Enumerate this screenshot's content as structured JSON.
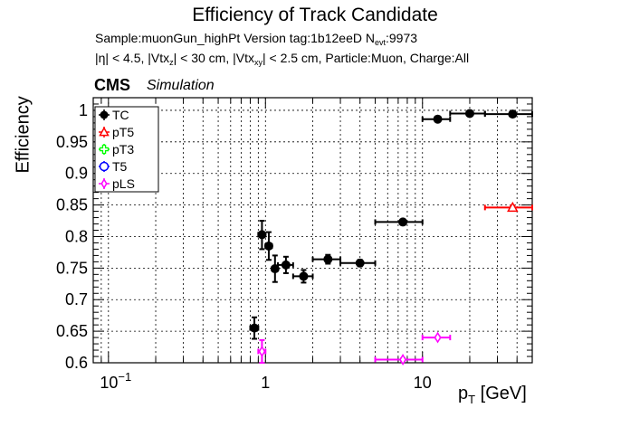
{
  "header": {
    "title": "Efficiency of Track Candidate",
    "info_line1_a": "Sample:muonGun_highPt   Version tag:1b12eeD  N",
    "info_line1_sub": "evt",
    "info_line1_b": ":9973",
    "info_line2_a": "|η| < 4.5, |Vtx",
    "info_line2_sub1": "z",
    "info_line2_b": "| < 30 cm, |Vtx",
    "info_line2_sub2": "xy",
    "info_line2_c": "| < 2.5 cm, Particle:Muon, Charge:All",
    "cms": "CMS",
    "simulation": "Simulation"
  },
  "chart_data": {
    "type": "scatter",
    "title": "Efficiency of Track Candidate",
    "xlabel_main": "p",
    "xlabel_sub": "T",
    "xlabel_unit": " [GeV]",
    "ylabel": "Efficiency",
    "x_scale": "log",
    "xlim": [
      0.08,
      50
    ],
    "ylim": [
      0.6,
      1.02
    ],
    "grid": true,
    "legend_position": "top-left",
    "x_tick_labels": [
      {
        "value": 0.1,
        "base": "10",
        "exp": "−1"
      },
      {
        "value": 1,
        "base": "1",
        "exp": ""
      },
      {
        "value": 10,
        "base": "10",
        "exp": ""
      }
    ],
    "y_ticks": [
      0.6,
      0.65,
      0.7,
      0.75,
      0.8,
      0.85,
      0.9,
      0.95,
      1.0
    ],
    "y_tick_labels": [
      "0.6",
      "0.65",
      "0.7",
      "0.75",
      "0.8",
      "0.85",
      "0.9",
      "0.95",
      "1"
    ],
    "series": [
      {
        "name": "TC",
        "color": "#000000",
        "marker": "filled-circle",
        "points": [
          {
            "x": 0.85,
            "y": 0.655,
            "xlo": 0.8,
            "xhi": 0.9,
            "ylo": 0.638,
            "yhi": 0.672
          },
          {
            "x": 0.95,
            "y": 0.803,
            "xlo": 0.9,
            "xhi": 1.0,
            "ylo": 0.78,
            "yhi": 0.825
          },
          {
            "x": 1.05,
            "y": 0.785,
            "xlo": 1.0,
            "xhi": 1.1,
            "ylo": 0.763,
            "yhi": 0.807
          },
          {
            "x": 1.15,
            "y": 0.749,
            "xlo": 1.1,
            "xhi": 1.2,
            "ylo": 0.728,
            "yhi": 0.77
          },
          {
            "x": 1.35,
            "y": 0.755,
            "xlo": 1.2,
            "xhi": 1.5,
            "ylo": 0.742,
            "yhi": 0.768
          },
          {
            "x": 1.75,
            "y": 0.737,
            "xlo": 1.5,
            "xhi": 2.0,
            "ylo": 0.727,
            "yhi": 0.747
          },
          {
            "x": 2.5,
            "y": 0.764,
            "xlo": 2.0,
            "xhi": 3.0,
            "ylo": 0.757,
            "yhi": 0.771
          },
          {
            "x": 4.0,
            "y": 0.758,
            "xlo": 3.0,
            "xhi": 5.0,
            "ylo": 0.753,
            "yhi": 0.763
          },
          {
            "x": 7.5,
            "y": 0.823,
            "xlo": 5.0,
            "xhi": 10.0,
            "ylo": 0.82,
            "yhi": 0.826
          },
          {
            "x": 12.5,
            "y": 0.986,
            "xlo": 10.0,
            "xhi": 15.0,
            "ylo": 0.984,
            "yhi": 0.988
          },
          {
            "x": 20.0,
            "y": 0.995,
            "xlo": 15.0,
            "xhi": 25.0,
            "ylo": 0.994,
            "yhi": 0.996
          },
          {
            "x": 37.5,
            "y": 0.994,
            "xlo": 25.0,
            "xhi": 50.0,
            "ylo": 0.993,
            "yhi": 0.995
          }
        ]
      },
      {
        "name": "pT5",
        "color": "#ff0000",
        "marker": "open-triangle",
        "points": [
          {
            "x": 37.5,
            "y": 0.846,
            "xlo": 25.0,
            "xhi": 50.0,
            "ylo": 0.843,
            "yhi": 0.849
          }
        ]
      },
      {
        "name": "pT3",
        "color": "#00ff00",
        "marker": "open-cross",
        "points": []
      },
      {
        "name": "T5",
        "color": "#0000ff",
        "marker": "open-circle",
        "points": []
      },
      {
        "name": "pLS",
        "color": "#ff00ff",
        "marker": "open-diamond",
        "points": [
          {
            "x": 0.95,
            "y": 0.618,
            "xlo": 0.9,
            "xhi": 1.0,
            "ylo": 0.6,
            "yhi": 0.636
          },
          {
            "x": 7.5,
            "y": 0.605,
            "xlo": 5.0,
            "xhi": 10.0,
            "ylo": 0.603,
            "yhi": 0.607
          },
          {
            "x": 12.5,
            "y": 0.64,
            "xlo": 10.0,
            "xhi": 15.0,
            "ylo": 0.638,
            "yhi": 0.642
          }
        ]
      }
    ]
  }
}
